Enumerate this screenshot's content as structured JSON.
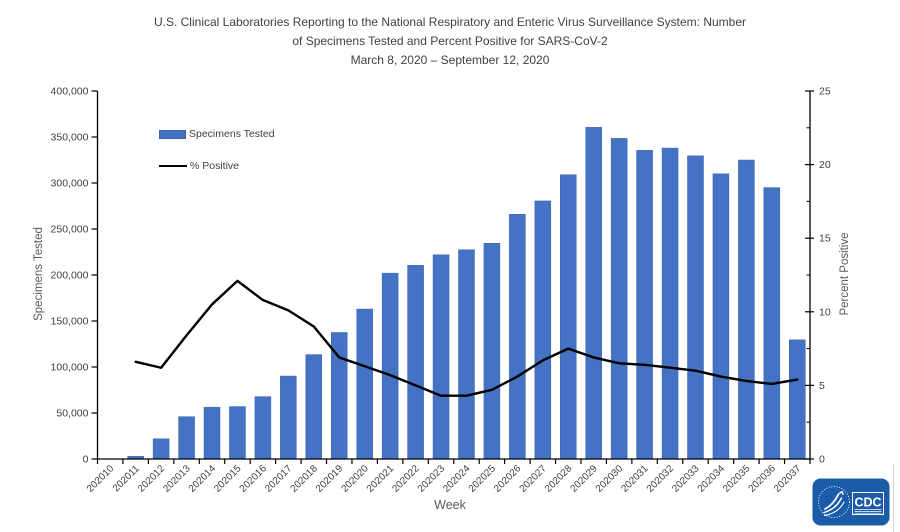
{
  "title": {
    "lines": [
      "U.S. Clinical Laboratories Reporting to the National Respiratory and Enteric Virus Surveillance System: Number",
      "of Specimens Tested and Percent Positive for SARS-CoV-2",
      "March 8, 2020 – September 12, 2020"
    ]
  },
  "legend": {
    "specimens_label": "Specimens Tested",
    "positive_label": "% Positive"
  },
  "axes": {
    "left_title": "Specimens Tested",
    "right_title": "Percent Positive",
    "x_title": "Week"
  },
  "logo": {
    "agency": "CDC"
  },
  "colors": {
    "bar": "#4472C4",
    "bar_edge": "#3a63ad",
    "line": "#000000",
    "axis": "#000000",
    "tick_text": "#404040",
    "logo_blue": "#1A5CA8"
  },
  "chart_data": {
    "type": "bar+line",
    "title": "U.S. Clinical Laboratories Reporting to the National Respiratory and Enteric Virus Surveillance System: Number of Specimens Tested and Percent Positive for SARS-CoV-2",
    "subtitle": "March 8, 2020 – September 12, 2020",
    "categories": [
      "202010",
      "202011",
      "202012",
      "202013",
      "202014",
      "202015",
      "202016",
      "202017",
      "202018",
      "202019",
      "202020",
      "202021",
      "202022",
      "202023",
      "202024",
      "202025",
      "202026",
      "202027",
      "202028",
      "202029",
      "202030",
      "202031",
      "202032",
      "202033",
      "202034",
      "202035",
      "202036",
      "202037"
    ],
    "series": [
      {
        "name": "Specimens Tested",
        "type": "bar",
        "axis": "left",
        "values": [
          0,
          2900,
          22000,
          46000,
          56300,
          57000,
          67800,
          90200,
          113500,
          137500,
          163000,
          202000,
          210500,
          222000,
          227500,
          234500,
          266000,
          280500,
          309000,
          360500,
          348500,
          335500,
          338000,
          329500,
          310000,
          325000,
          295000,
          129500
        ]
      },
      {
        "name": "% Positive",
        "type": "line",
        "axis": "right",
        "values": [
          null,
          6.6,
          6.2,
          8.4,
          10.5,
          12.1,
          10.8,
          10.1,
          9.0,
          6.9,
          6.3,
          5.7,
          5.0,
          4.3,
          4.3,
          4.7,
          5.6,
          6.7,
          7.5,
          6.9,
          6.5,
          6.4,
          6.2,
          6.0,
          5.6,
          5.3,
          5.1,
          5.4
        ]
      }
    ],
    "left_axis": {
      "label": "Specimens Tested",
      "min": 0,
      "max": 400000,
      "tick_interval": 50000,
      "tick_labels": [
        "400,000",
        "350,000",
        "300,000",
        "250,000",
        "200,000",
        "150,000",
        "100,000",
        "50,000",
        "0"
      ]
    },
    "right_axis": {
      "label": "Percent Positive",
      "min": 0,
      "max": 25,
      "tick_interval": 5,
      "minor_tick_interval": 2.5,
      "tick_labels": [
        "25",
        "20",
        "15",
        "10",
        "5",
        "0"
      ]
    },
    "x_axis": {
      "label": "Week"
    },
    "legend_position": "inside-top-left",
    "grid": false
  }
}
